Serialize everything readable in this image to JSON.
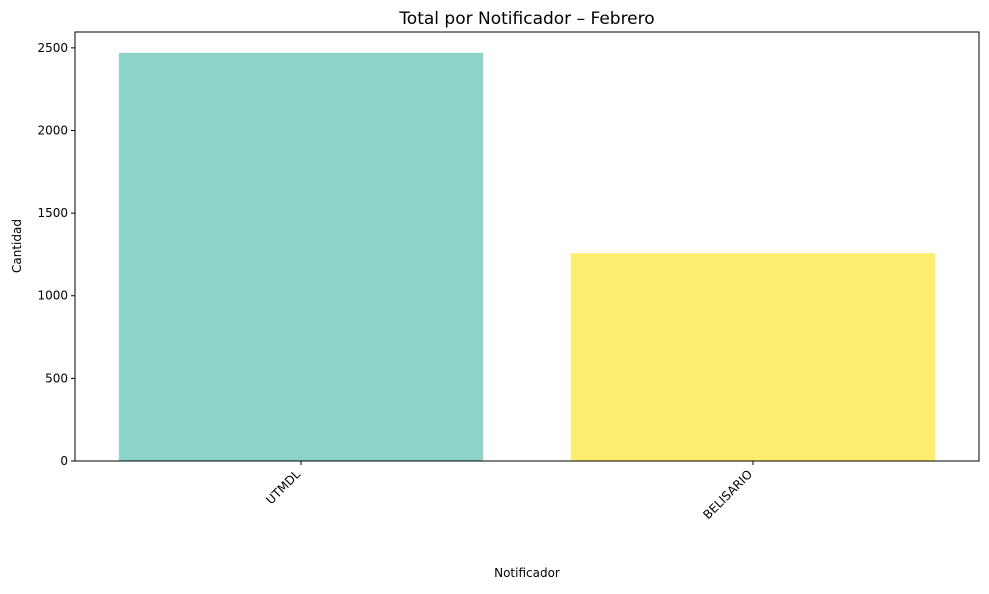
{
  "chart_data": {
    "type": "bar",
    "title": "Total por Notificador – Febrero",
    "xlabel": "Notificador",
    "ylabel": "Cantidad",
    "categories": [
      "UTMDL",
      "BELISARIO"
    ],
    "values": [
      2470,
      1258
    ],
    "bar_colors": [
      "#8dd3c7",
      "#ffed6f"
    ],
    "ylim": [
      0,
      2596
    ],
    "yticks": [
      0,
      500,
      1000,
      1500,
      2000,
      2500
    ],
    "x_tick_rotation_deg": 45,
    "grid": false,
    "legend": "none"
  }
}
